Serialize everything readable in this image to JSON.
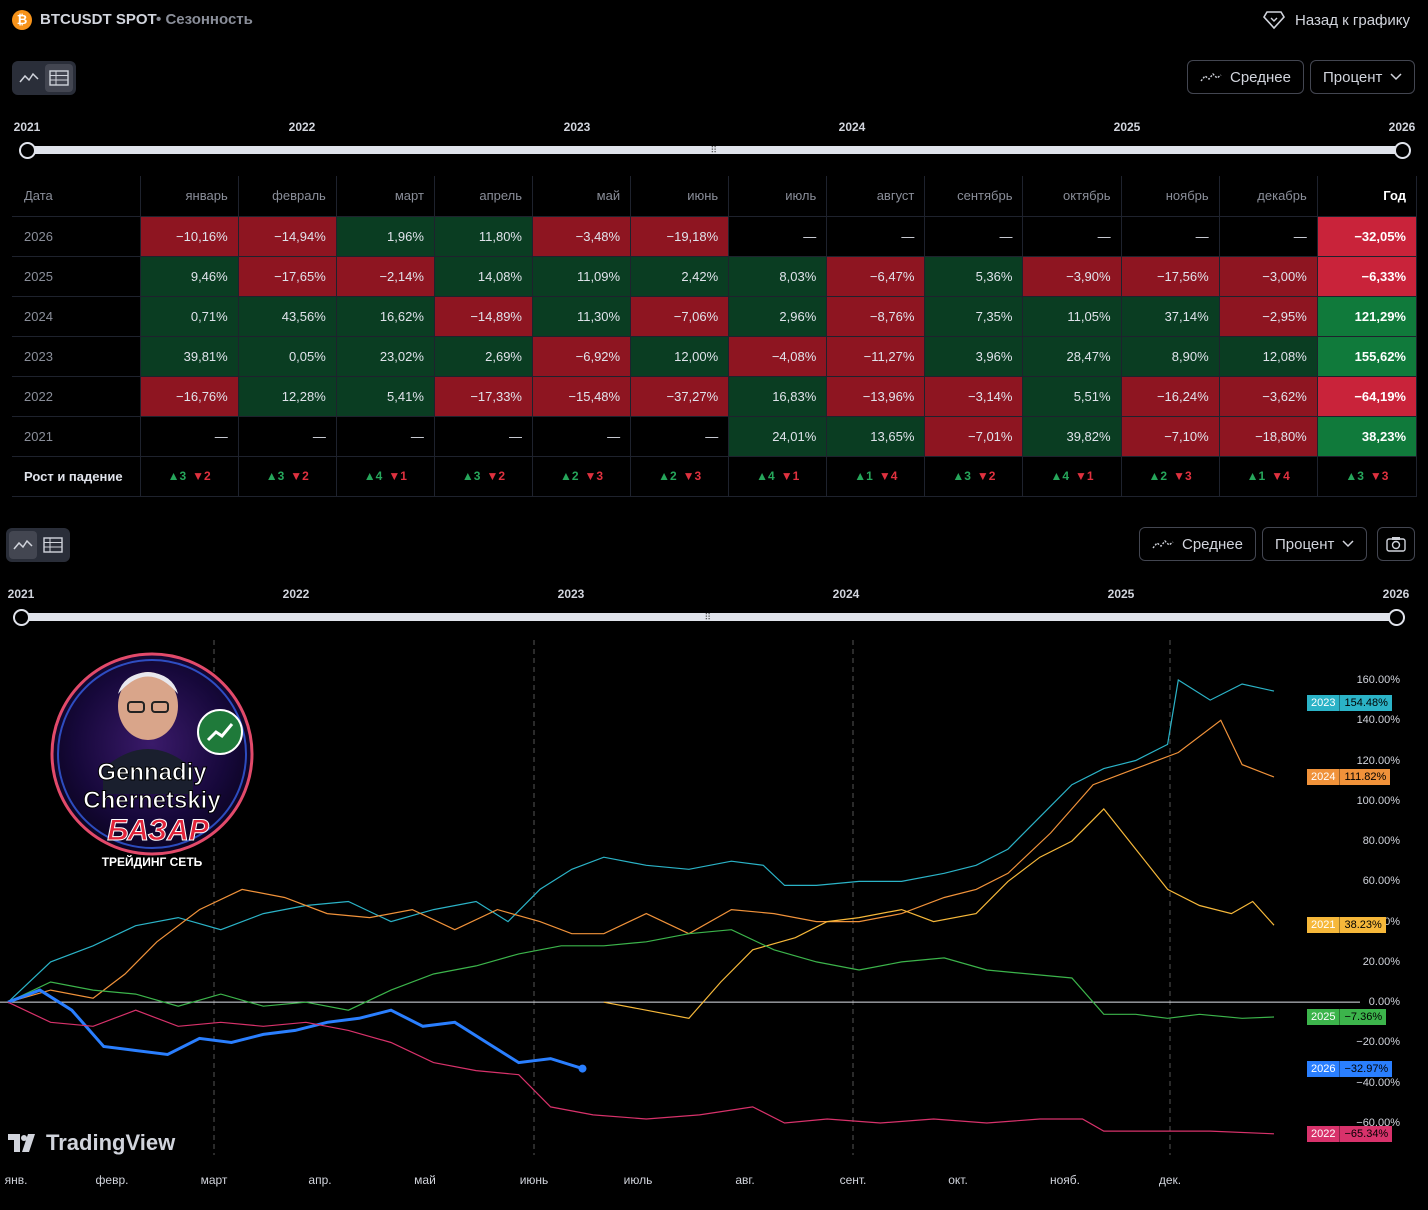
{
  "header": {
    "symbol": "BTCUSDT SPOT",
    "separator": "•",
    "page_name": "Сезонность",
    "back_label": "Назад к графику",
    "coin_icon": "bitcoin-icon"
  },
  "controls": {
    "average_label": "Среднее",
    "mode_label": "Процент"
  },
  "slider_years": [
    "2021",
    "2022",
    "2023",
    "2024",
    "2025",
    "2026"
  ],
  "table": {
    "headers": [
      "Дата",
      "январь",
      "февраль",
      "март",
      "апрель",
      "май",
      "июнь",
      "июль",
      "август",
      "сентябрь",
      "октябрь",
      "ноябрь",
      "декабрь",
      "Год"
    ],
    "rows": [
      {
        "year": "2026",
        "cells": [
          [
            "−10,16%",
            "neg"
          ],
          [
            "−14,94%",
            "neg"
          ],
          [
            "1,96%",
            "pos"
          ],
          [
            "11,80%",
            "pos"
          ],
          [
            "−3,48%",
            "neg"
          ],
          [
            "−19,18%",
            "neg"
          ],
          [
            "—",
            "empty"
          ],
          [
            "—",
            "empty"
          ],
          [
            "—",
            "empty"
          ],
          [
            "—",
            "empty"
          ],
          [
            "—",
            "empty"
          ],
          [
            "—",
            "empty"
          ]
        ],
        "total": [
          "−32,05%",
          "yneg"
        ]
      },
      {
        "year": "2025",
        "cells": [
          [
            "9,46%",
            "pos"
          ],
          [
            "−17,65%",
            "neg"
          ],
          [
            "−2,14%",
            "neg"
          ],
          [
            "14,08%",
            "pos"
          ],
          [
            "11,09%",
            "pos"
          ],
          [
            "2,42%",
            "pos"
          ],
          [
            "8,03%",
            "pos"
          ],
          [
            "−6,47%",
            "neg"
          ],
          [
            "5,36%",
            "pos"
          ],
          [
            "−3,90%",
            "neg"
          ],
          [
            "−17,56%",
            "neg"
          ],
          [
            "−3,00%",
            "neg"
          ]
        ],
        "total": [
          "−6,33%",
          "yneg"
        ]
      },
      {
        "year": "2024",
        "cells": [
          [
            "0,71%",
            "pos"
          ],
          [
            "43,56%",
            "pos"
          ],
          [
            "16,62%",
            "pos"
          ],
          [
            "−14,89%",
            "neg"
          ],
          [
            "11,30%",
            "pos"
          ],
          [
            "−7,06%",
            "neg"
          ],
          [
            "2,96%",
            "pos"
          ],
          [
            "−8,76%",
            "neg"
          ],
          [
            "7,35%",
            "pos"
          ],
          [
            "11,05%",
            "pos"
          ],
          [
            "37,14%",
            "pos"
          ],
          [
            "−2,95%",
            "neg"
          ]
        ],
        "total": [
          "121,29%",
          "ypos"
        ]
      },
      {
        "year": "2023",
        "cells": [
          [
            "39,81%",
            "pos"
          ],
          [
            "0,05%",
            "pos"
          ],
          [
            "23,02%",
            "pos"
          ],
          [
            "2,69%",
            "pos"
          ],
          [
            "−6,92%",
            "neg"
          ],
          [
            "12,00%",
            "pos"
          ],
          [
            "−4,08%",
            "neg"
          ],
          [
            "−11,27%",
            "neg"
          ],
          [
            "3,96%",
            "pos"
          ],
          [
            "28,47%",
            "pos"
          ],
          [
            "8,90%",
            "pos"
          ],
          [
            "12,08%",
            "pos"
          ]
        ],
        "total": [
          "155,62%",
          "ypos"
        ]
      },
      {
        "year": "2022",
        "cells": [
          [
            "−16,76%",
            "neg"
          ],
          [
            "12,28%",
            "pos"
          ],
          [
            "5,41%",
            "pos"
          ],
          [
            "−17,33%",
            "neg"
          ],
          [
            "−15,48%",
            "neg"
          ],
          [
            "−37,27%",
            "neg"
          ],
          [
            "16,83%",
            "pos"
          ],
          [
            "−13,96%",
            "neg"
          ],
          [
            "−3,14%",
            "neg"
          ],
          [
            "5,51%",
            "pos"
          ],
          [
            "−16,24%",
            "neg"
          ],
          [
            "−3,62%",
            "neg"
          ]
        ],
        "total": [
          "−64,19%",
          "yneg"
        ]
      },
      {
        "year": "2021",
        "cells": [
          [
            "—",
            "empty"
          ],
          [
            "—",
            "empty"
          ],
          [
            "—",
            "empty"
          ],
          [
            "—",
            "empty"
          ],
          [
            "—",
            "empty"
          ],
          [
            "—",
            "empty"
          ],
          [
            "24,01%",
            "pos"
          ],
          [
            "13,65%",
            "pos"
          ],
          [
            "−7,01%",
            "neg"
          ],
          [
            "39,82%",
            "pos"
          ],
          [
            "−7,10%",
            "neg"
          ],
          [
            "−18,80%",
            "neg"
          ]
        ],
        "total": [
          "38,23%",
          "ypos"
        ]
      }
    ],
    "rise_fall_label": "Рост и падение",
    "rise_fall": [
      [
        "▲3",
        "▼2"
      ],
      [
        "▲3",
        "▼2"
      ],
      [
        "▲4",
        "▼1"
      ],
      [
        "▲3",
        "▼2"
      ],
      [
        "▲2",
        "▼3"
      ],
      [
        "▲2",
        "▼3"
      ],
      [
        "▲4",
        "▼1"
      ],
      [
        "▲1",
        "▼4"
      ],
      [
        "▲3",
        "▼2"
      ],
      [
        "▲4",
        "▼1"
      ],
      [
        "▲2",
        "▼3"
      ],
      [
        "▲1",
        "▼4"
      ],
      [
        "▲3",
        "▼3"
      ]
    ]
  },
  "chart_data": {
    "type": "line",
    "xlabel": "",
    "ylabel": "",
    "ylim": [
      -60,
      160
    ],
    "y_ticks": [
      "160.00%",
      "140.00%",
      "120.00%",
      "100.00%",
      "80.00%",
      "60.00%",
      "40.00%",
      "20.00%",
      "0.00%",
      "−20.00%",
      "−40.00%",
      "−60.00%"
    ],
    "x_months": [
      "янв.",
      "февр.",
      "март",
      "апр.",
      "май",
      "июнь",
      "июль",
      "авг.",
      "сент.",
      "окт.",
      "нояб.",
      "дек."
    ],
    "x_domain": [
      1,
      12.9
    ],
    "series": [
      {
        "name": "2023",
        "color": "#2bb3c7",
        "last": "154.48%",
        "points": [
          [
            1,
            0
          ],
          [
            1.4,
            20
          ],
          [
            1.8,
            28
          ],
          [
            2.2,
            38
          ],
          [
            2.6,
            42
          ],
          [
            3,
            36
          ],
          [
            3.4,
            44
          ],
          [
            3.8,
            48
          ],
          [
            4.2,
            50
          ],
          [
            4.6,
            40
          ],
          [
            5,
            46
          ],
          [
            5.4,
            50
          ],
          [
            5.7,
            40
          ],
          [
            6,
            56
          ],
          [
            6.3,
            66
          ],
          [
            6.6,
            72
          ],
          [
            7,
            68
          ],
          [
            7.4,
            66
          ],
          [
            7.8,
            70
          ],
          [
            8.1,
            68
          ],
          [
            8.3,
            58
          ],
          [
            8.6,
            58
          ],
          [
            9,
            60
          ],
          [
            9.4,
            60
          ],
          [
            9.8,
            64
          ],
          [
            10.1,
            68
          ],
          [
            10.4,
            76
          ],
          [
            10.7,
            92
          ],
          [
            11.0,
            108
          ],
          [
            11.3,
            116
          ],
          [
            11.6,
            120
          ],
          [
            11.9,
            128
          ],
          [
            12.0,
            160
          ],
          [
            12.3,
            150
          ],
          [
            12.6,
            158
          ],
          [
            12.9,
            154.48
          ]
        ]
      },
      {
        "name": "2024",
        "color": "#f0923a",
        "last": "111.82%",
        "points": [
          [
            1,
            0
          ],
          [
            1.4,
            6
          ],
          [
            1.8,
            2
          ],
          [
            2.1,
            14
          ],
          [
            2.4,
            30
          ],
          [
            2.8,
            46
          ],
          [
            3.2,
            56
          ],
          [
            3.6,
            52
          ],
          [
            4,
            44
          ],
          [
            4.4,
            42
          ],
          [
            4.8,
            46
          ],
          [
            5.2,
            36
          ],
          [
            5.6,
            46
          ],
          [
            6,
            40
          ],
          [
            6.3,
            34
          ],
          [
            6.6,
            34
          ],
          [
            7,
            44
          ],
          [
            7.4,
            34
          ],
          [
            7.8,
            46
          ],
          [
            8.2,
            44
          ],
          [
            8.6,
            40
          ],
          [
            9,
            40
          ],
          [
            9.4,
            44
          ],
          [
            9.8,
            52
          ],
          [
            10.1,
            56
          ],
          [
            10.4,
            64
          ],
          [
            10.8,
            84
          ],
          [
            11.2,
            108
          ],
          [
            11.6,
            116
          ],
          [
            12.0,
            124
          ],
          [
            12.4,
            140
          ],
          [
            12.6,
            118
          ],
          [
            12.9,
            111.82
          ]
        ]
      },
      {
        "name": "2021",
        "color": "#f6b83a",
        "last": "38.23%",
        "points": [
          [
            6.6,
            0
          ],
          [
            7.0,
            -4
          ],
          [
            7.4,
            -8
          ],
          [
            7.7,
            10
          ],
          [
            8.0,
            26
          ],
          [
            8.4,
            32
          ],
          [
            8.7,
            40
          ],
          [
            9.0,
            42
          ],
          [
            9.4,
            46
          ],
          [
            9.7,
            40
          ],
          [
            10.1,
            44
          ],
          [
            10.4,
            60
          ],
          [
            10.7,
            72
          ],
          [
            11.0,
            80
          ],
          [
            11.3,
            96
          ],
          [
            11.6,
            76
          ],
          [
            11.9,
            56
          ],
          [
            12.2,
            48
          ],
          [
            12.5,
            44
          ],
          [
            12.7,
            50
          ],
          [
            12.9,
            38.23
          ]
        ]
      },
      {
        "name": "2025",
        "color": "#3cb44b",
        "last": "−7.36%",
        "points": [
          [
            1,
            0
          ],
          [
            1.4,
            10
          ],
          [
            1.8,
            6
          ],
          [
            2.2,
            4
          ],
          [
            2.6,
            -2
          ],
          [
            3,
            4
          ],
          [
            3.4,
            -2
          ],
          [
            3.8,
            0
          ],
          [
            4.2,
            -4
          ],
          [
            4.6,
            6
          ],
          [
            5,
            14
          ],
          [
            5.4,
            18
          ],
          [
            5.8,
            24
          ],
          [
            6.2,
            28
          ],
          [
            6.6,
            28
          ],
          [
            7,
            30
          ],
          [
            7.4,
            34
          ],
          [
            7.8,
            36
          ],
          [
            8.2,
            26
          ],
          [
            8.6,
            20
          ],
          [
            9,
            16
          ],
          [
            9.4,
            20
          ],
          [
            9.8,
            22
          ],
          [
            10.2,
            16
          ],
          [
            10.6,
            14
          ],
          [
            11.0,
            12
          ],
          [
            11.3,
            -6
          ],
          [
            11.6,
            -6
          ],
          [
            11.9,
            -8
          ],
          [
            12.2,
            -6
          ],
          [
            12.6,
            -8
          ],
          [
            12.9,
            -7.36
          ]
        ]
      },
      {
        "name": "2026",
        "color": "#2a7fff",
        "last": "−32.97%",
        "points": [
          [
            1,
            0
          ],
          [
            1.3,
            6
          ],
          [
            1.6,
            -4
          ],
          [
            1.9,
            -22
          ],
          [
            2.2,
            -24
          ],
          [
            2.5,
            -26
          ],
          [
            2.8,
            -18
          ],
          [
            3.1,
            -20
          ],
          [
            3.4,
            -16
          ],
          [
            3.7,
            -14
          ],
          [
            4.0,
            -10
          ],
          [
            4.3,
            -8
          ],
          [
            4.6,
            -4
          ],
          [
            4.9,
            -12
          ],
          [
            5.2,
            -10
          ],
          [
            5.5,
            -20
          ],
          [
            5.8,
            -30
          ],
          [
            6.1,
            -28
          ],
          [
            6.4,
            -32.97
          ]
        ]
      },
      {
        "name": "2022",
        "color": "#d8326b",
        "last": "−65.34%",
        "points": [
          [
            1,
            0
          ],
          [
            1.4,
            -10
          ],
          [
            1.8,
            -12
          ],
          [
            2.2,
            -4
          ],
          [
            2.6,
            -12
          ],
          [
            3,
            -10
          ],
          [
            3.4,
            -12
          ],
          [
            3.8,
            -10
          ],
          [
            4.2,
            -14
          ],
          [
            4.6,
            -20
          ],
          [
            5,
            -30
          ],
          [
            5.4,
            -34
          ],
          [
            5.8,
            -36
          ],
          [
            6.1,
            -52
          ],
          [
            6.5,
            -56
          ],
          [
            7.0,
            -58
          ],
          [
            7.5,
            -56
          ],
          [
            8.0,
            -52
          ],
          [
            8.3,
            -60
          ],
          [
            8.7,
            -58
          ],
          [
            9.2,
            -60
          ],
          [
            9.7,
            -58
          ],
          [
            10.2,
            -60
          ],
          [
            10.7,
            -58
          ],
          [
            11.1,
            -58
          ],
          [
            11.3,
            -64
          ],
          [
            11.8,
            -64
          ],
          [
            12.3,
            -64
          ],
          [
            12.9,
            -65.34
          ]
        ]
      }
    ],
    "zero_label": "0.00%"
  },
  "branding": {
    "tv_logo": "TradingView",
    "badge_name_1": "Gennadiy",
    "badge_name_2": "Chernetskiy",
    "badge_brand": "БАЗАР",
    "badge_tagline": "ТРЕЙДИНГ СЕТЬ"
  }
}
